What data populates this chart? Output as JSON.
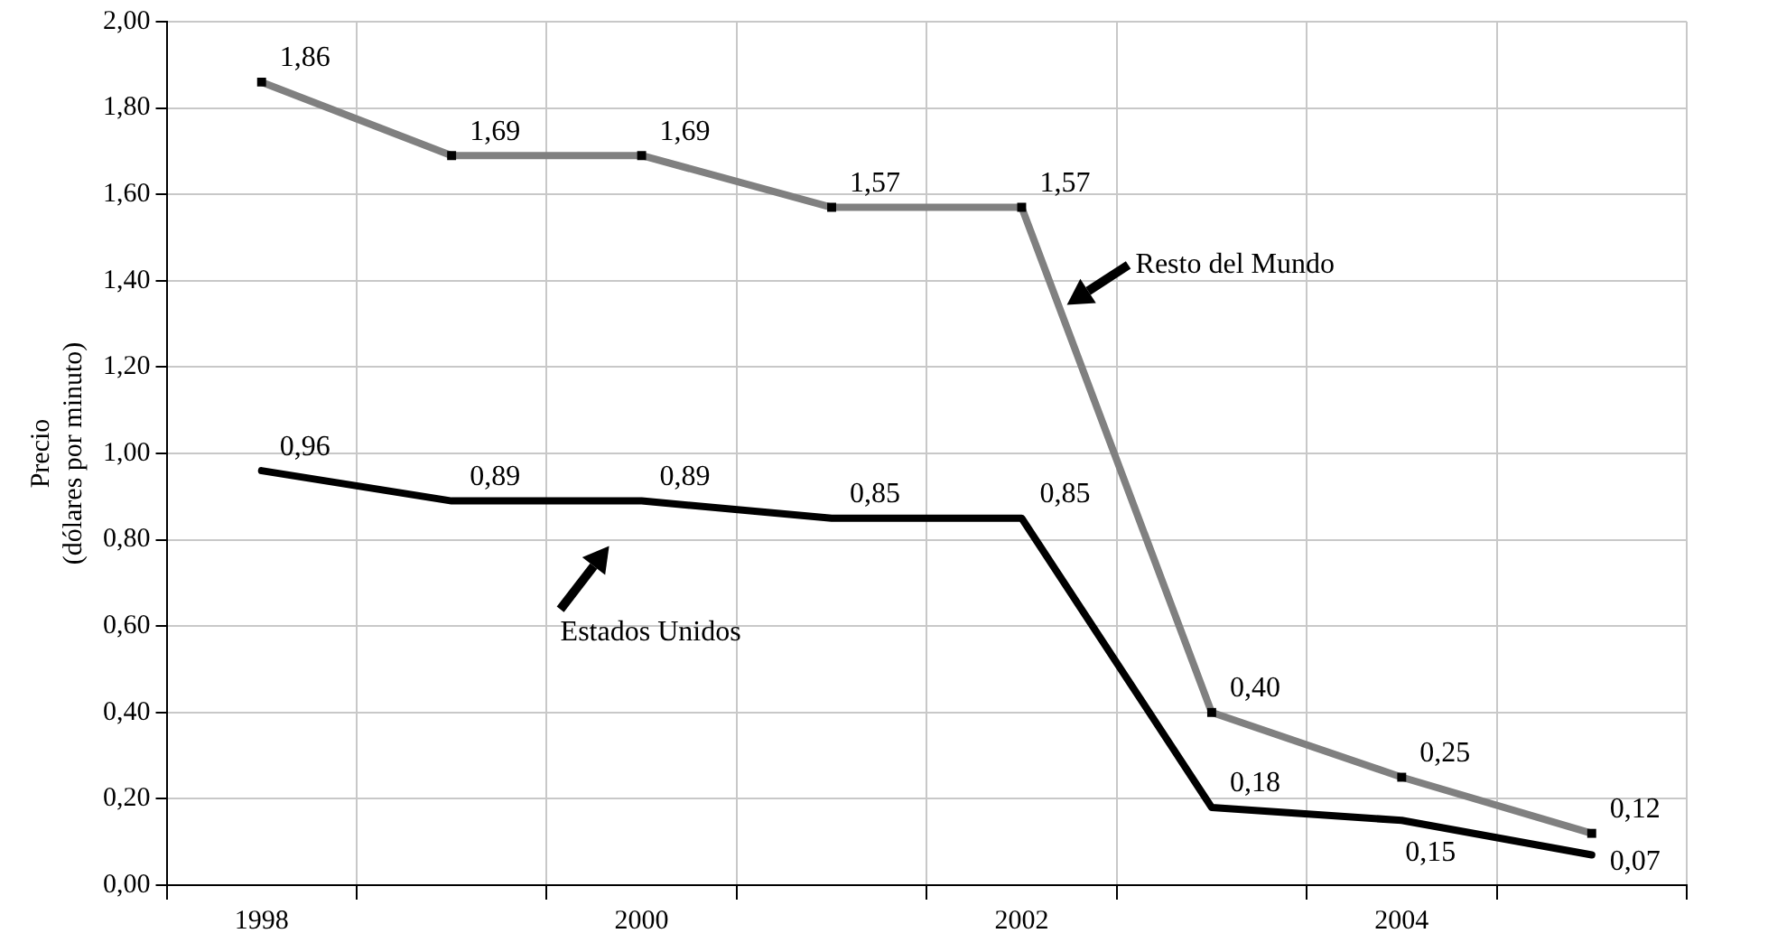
{
  "chart_data": {
    "type": "line",
    "ylabel": "Precio\n(dólares por minuto)",
    "categories": [
      "1998",
      null,
      "2000",
      null,
      "2002",
      null,
      "2004",
      null
    ],
    "series": [
      {
        "color": "#808080",
        "marker": "square",
        "values": [
          1.86,
          1.69,
          1.69,
          1.57,
          1.57,
          0.4,
          0.25,
          0.12
        ],
        "value_labels": [
          "1,86",
          "1,69",
          "1,69",
          "1,57",
          "1,57",
          "0,40",
          "0,25",
          "0,12"
        ]
      },
      {
        "color": "#000000",
        "marker": "none",
        "values": [
          0.96,
          0.89,
          0.89,
          0.85,
          0.85,
          0.18,
          0.15,
          0.07
        ],
        "value_labels": [
          "0,96",
          "0,89",
          "0,89",
          "0,85",
          "0,85",
          "0,18",
          "0,15",
          "0,07"
        ]
      }
    ],
    "ylim": [
      0,
      2
    ],
    "yticks": [
      {
        "value": 0,
        "label": "0,00"
      },
      {
        "value": 0.2,
        "label": "0,20"
      },
      {
        "value": 0.4,
        "label": "0,40"
      },
      {
        "value": 0.6,
        "label": "0,60"
      },
      {
        "value": 0.8,
        "label": "0,80"
      },
      {
        "value": 1,
        "label": "1,00"
      },
      {
        "value": 1.2,
        "label": "1,20"
      },
      {
        "value": 1.4,
        "label": "1,40"
      },
      {
        "value": 1.6,
        "label": "1,60"
      },
      {
        "value": 1.8,
        "label": "1,80"
      },
      {
        "value": 2,
        "label": "2,00"
      }
    ],
    "annotations": [
      "Resto del Mundo",
      "Estados Unidos"
    ],
    "grid": true,
    "legend": false
  }
}
